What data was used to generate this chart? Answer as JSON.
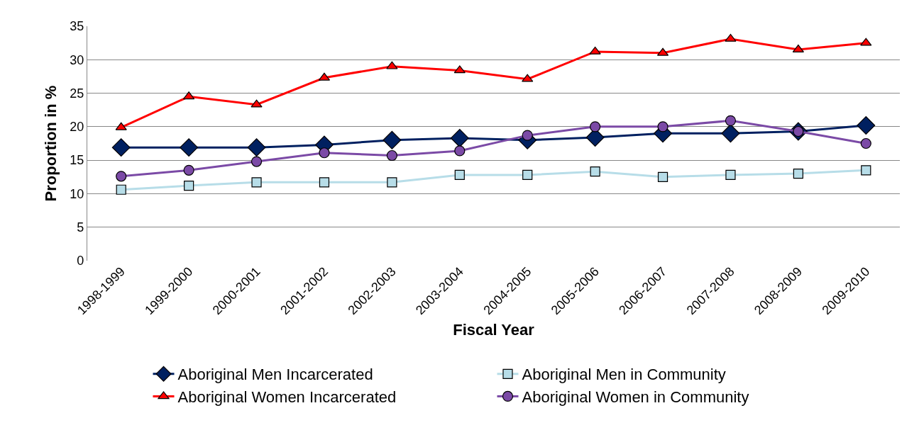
{
  "chart_data": {
    "type": "line",
    "xlabel": "Fiscal Year",
    "ylabel": "Proportion in %",
    "categories": [
      "1998-1999",
      "1999-2000",
      "2000-2001",
      "2001-2002",
      "2002-2003",
      "2003-2004",
      "2004-2005",
      "2005-2006",
      "2006-2007",
      "2007-2008",
      "2008-2009",
      "2009-2010"
    ],
    "series": [
      {
        "name": "Aboriginal Men Incarcerated",
        "color": "#002060",
        "marker": "diamond",
        "values": [
          16.9,
          16.9,
          16.9,
          17.3,
          18.0,
          18.3,
          18.0,
          18.4,
          19.0,
          19.0,
          19.3,
          20.2
        ]
      },
      {
        "name": "Aboriginal Men in Community",
        "color": "#b7dde8",
        "marker": "square",
        "values": [
          10.6,
          11.2,
          11.7,
          11.7,
          11.7,
          12.8,
          12.8,
          13.3,
          12.5,
          12.8,
          13.0,
          13.5
        ]
      },
      {
        "name": "Aboriginal Women Incarcerated",
        "color": "#ff0000",
        "marker": "triangle",
        "values": [
          19.9,
          24.5,
          23.3,
          27.3,
          29.0,
          28.4,
          27.1,
          31.2,
          31.0,
          33.1,
          31.5,
          32.5
        ]
      },
      {
        "name": "Aboriginal Women in Community",
        "color": "#7b4aa6",
        "marker": "circle",
        "values": [
          12.6,
          13.5,
          14.8,
          16.1,
          15.7,
          16.4,
          18.7,
          20.0,
          20.0,
          20.9,
          19.3,
          17.5
        ]
      }
    ],
    "ylim": [
      0,
      35
    ],
    "yticks": [
      0,
      5,
      10,
      15,
      20,
      25,
      30,
      35
    ],
    "grid": "y",
    "legend": "bottom",
    "line_style": "solid"
  }
}
